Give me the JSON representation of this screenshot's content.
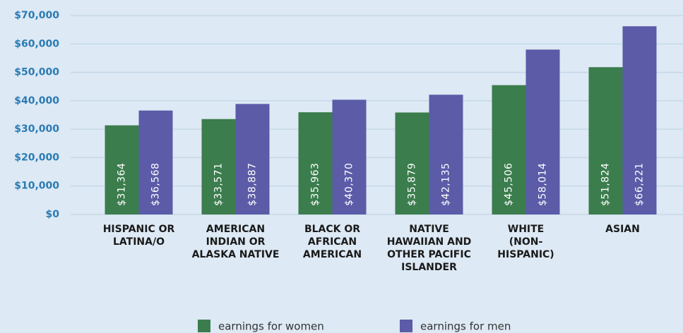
{
  "chart_data": {
    "type": "bar",
    "categories": [
      "HISPANIC OR LATINA/O",
      "AMERICAN INDIAN OR ALASKA NATIVE",
      "BLACK OR AFRICAN AMERICAN",
      "NATIVE HAWAIIAN AND OTHER PACIFIC ISLANDER",
      "WHITE (NON-HISPANIC)",
      "ASIAN"
    ],
    "series": [
      {
        "name": "earnings for women",
        "color": "#3b7d4d",
        "values": [
          31364,
          33571,
          35963,
          35879,
          45506,
          51824
        ],
        "value_labels": [
          "$31,364",
          "$33,571",
          "$35,963",
          "$35,879",
          "$45,506",
          "$51,824"
        ]
      },
      {
        "name": "earnings for men",
        "color": "#5b5ba8",
        "values": [
          36568,
          38887,
          40370,
          42135,
          58014,
          66221
        ],
        "value_labels": [
          "$36,568",
          "$38,887",
          "$40,370",
          "$42,135",
          "$58,014",
          "$66,221"
        ]
      }
    ],
    "ylim": [
      0,
      70000
    ],
    "yticks": [
      {
        "value": 0,
        "label": "$0"
      },
      {
        "value": 10000,
        "label": "$10,000"
      },
      {
        "value": 20000,
        "label": "$20,000"
      },
      {
        "value": 30000,
        "label": "$30,000"
      },
      {
        "value": 40000,
        "label": "$40,000"
      },
      {
        "value": 50000,
        "label": "$50,000"
      },
      {
        "value": 60000,
        "label": "$60,000"
      },
      {
        "value": 70000,
        "label": "$70,000"
      }
    ],
    "grid": true
  }
}
